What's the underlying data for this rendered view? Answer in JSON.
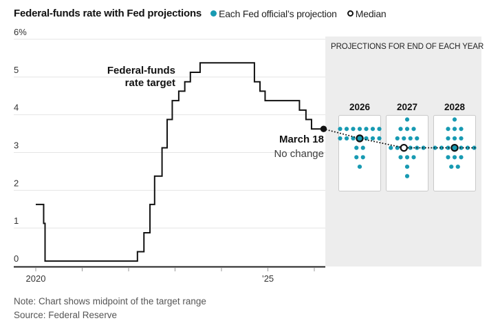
{
  "header": {
    "title": "Federal-funds rate with Fed projections",
    "legend": [
      {
        "label": "Each Fed official’s projection",
        "marker": "teal-dot"
      },
      {
        "label": "Median",
        "marker": "open-circle"
      }
    ]
  },
  "colors": {
    "teal": "#189ab2",
    "line_black": "#111111",
    "panel_gray": "#ededed",
    "grid_gray": "#e4e4e4",
    "box_border": "#c9c9c9",
    "box_fill": "#ffffff",
    "axis_dark": "#222222",
    "tick_gray": "#999999",
    "label_gray": "#333333"
  },
  "chart_data": {
    "type": "line",
    "subtype": "step-line with dot-plot projections",
    "title": "Federal-funds rate with Fed projections",
    "unit": "percent",
    "ylim": [
      0,
      6
    ],
    "grid": true,
    "yticks": [
      {
        "v": 6,
        "label": "6%"
      },
      {
        "v": 5,
        "label": "5"
      },
      {
        "v": 4,
        "label": "4"
      },
      {
        "v": 3,
        "label": "3"
      },
      {
        "v": 2,
        "label": "2"
      },
      {
        "v": 1,
        "label": "1"
      },
      {
        "v": 0,
        "label": "0"
      }
    ],
    "xticks": [
      {
        "t": 2020,
        "label": "2020"
      },
      {
        "t": 2021,
        "label": ""
      },
      {
        "t": 2022,
        "label": ""
      },
      {
        "t": 2023,
        "label": ""
      },
      {
        "t": 2024,
        "label": ""
      },
      {
        "t": 2025,
        "label": "’25"
      },
      {
        "t": 2026,
        "label": ""
      }
    ],
    "series": [
      {
        "name": "Federal-funds rate target",
        "step_points": [
          [
            2020.0,
            1.625
          ],
          [
            2020.17,
            1.125
          ],
          [
            2020.2,
            0.125
          ],
          [
            2022.19,
            0.375
          ],
          [
            2022.33,
            0.875
          ],
          [
            2022.46,
            1.625
          ],
          [
            2022.56,
            2.375
          ],
          [
            2022.72,
            3.125
          ],
          [
            2022.83,
            3.875
          ],
          [
            2022.94,
            4.375
          ],
          [
            2023.08,
            4.625
          ],
          [
            2023.21,
            4.875
          ],
          [
            2023.33,
            5.125
          ],
          [
            2023.54,
            5.375
          ],
          [
            2024.71,
            4.875
          ],
          [
            2024.83,
            4.625
          ],
          [
            2024.94,
            4.375
          ],
          [
            2025.68,
            4.125
          ],
          [
            2025.82,
            3.875
          ],
          [
            2025.94,
            3.625
          ],
          [
            2026.2,
            3.625
          ]
        ]
      }
    ],
    "end_marker": {
      "t": 2026.2,
      "v": 3.625
    },
    "annotations": {
      "series_label_line1": "Federal-funds",
      "series_label_line2": "rate target",
      "end_label_line1": "March 18",
      "end_label_line2": "No change"
    },
    "projections": {
      "panel_title": "PROJECTIONS FOR END OF EACH YEAR",
      "years": [
        {
          "year": "2026",
          "median_value": 3.375,
          "median_fill": "teal",
          "rows": [
            {
              "value": 3.625,
              "count": 7
            },
            {
              "value": 3.375,
              "count": 7,
              "median_index": 3
            },
            {
              "value": 3.125,
              "count": 2
            },
            {
              "value": 2.875,
              "count": 2
            },
            {
              "value": 2.625,
              "count": 1
            }
          ]
        },
        {
          "year": "2027",
          "median_value": 3.125,
          "median_fill": "white",
          "rows": [
            {
              "value": 3.875,
              "count": 1
            },
            {
              "value": 3.625,
              "count": 3
            },
            {
              "value": 3.375,
              "count": 4
            },
            {
              "value": 3.125,
              "count": 6,
              "median_index": 2
            },
            {
              "value": 2.875,
              "count": 3
            },
            {
              "value": 2.625,
              "count": 1
            },
            {
              "value": 2.375,
              "count": 1
            }
          ]
        },
        {
          "year": "2028",
          "median_value": 3.125,
          "median_fill": "teal",
          "rows": [
            {
              "value": 3.875,
              "count": 1
            },
            {
              "value": 3.625,
              "count": 3
            },
            {
              "value": 3.375,
              "count": 3
            },
            {
              "value": 3.125,
              "count": 7,
              "median_index": 3
            },
            {
              "value": 2.875,
              "count": 3
            },
            {
              "value": 2.625,
              "count": 2
            }
          ]
        }
      ]
    }
  },
  "footer": {
    "note": "Note: Chart shows midpoint of the target range",
    "source": "Source: Federal Reserve"
  }
}
